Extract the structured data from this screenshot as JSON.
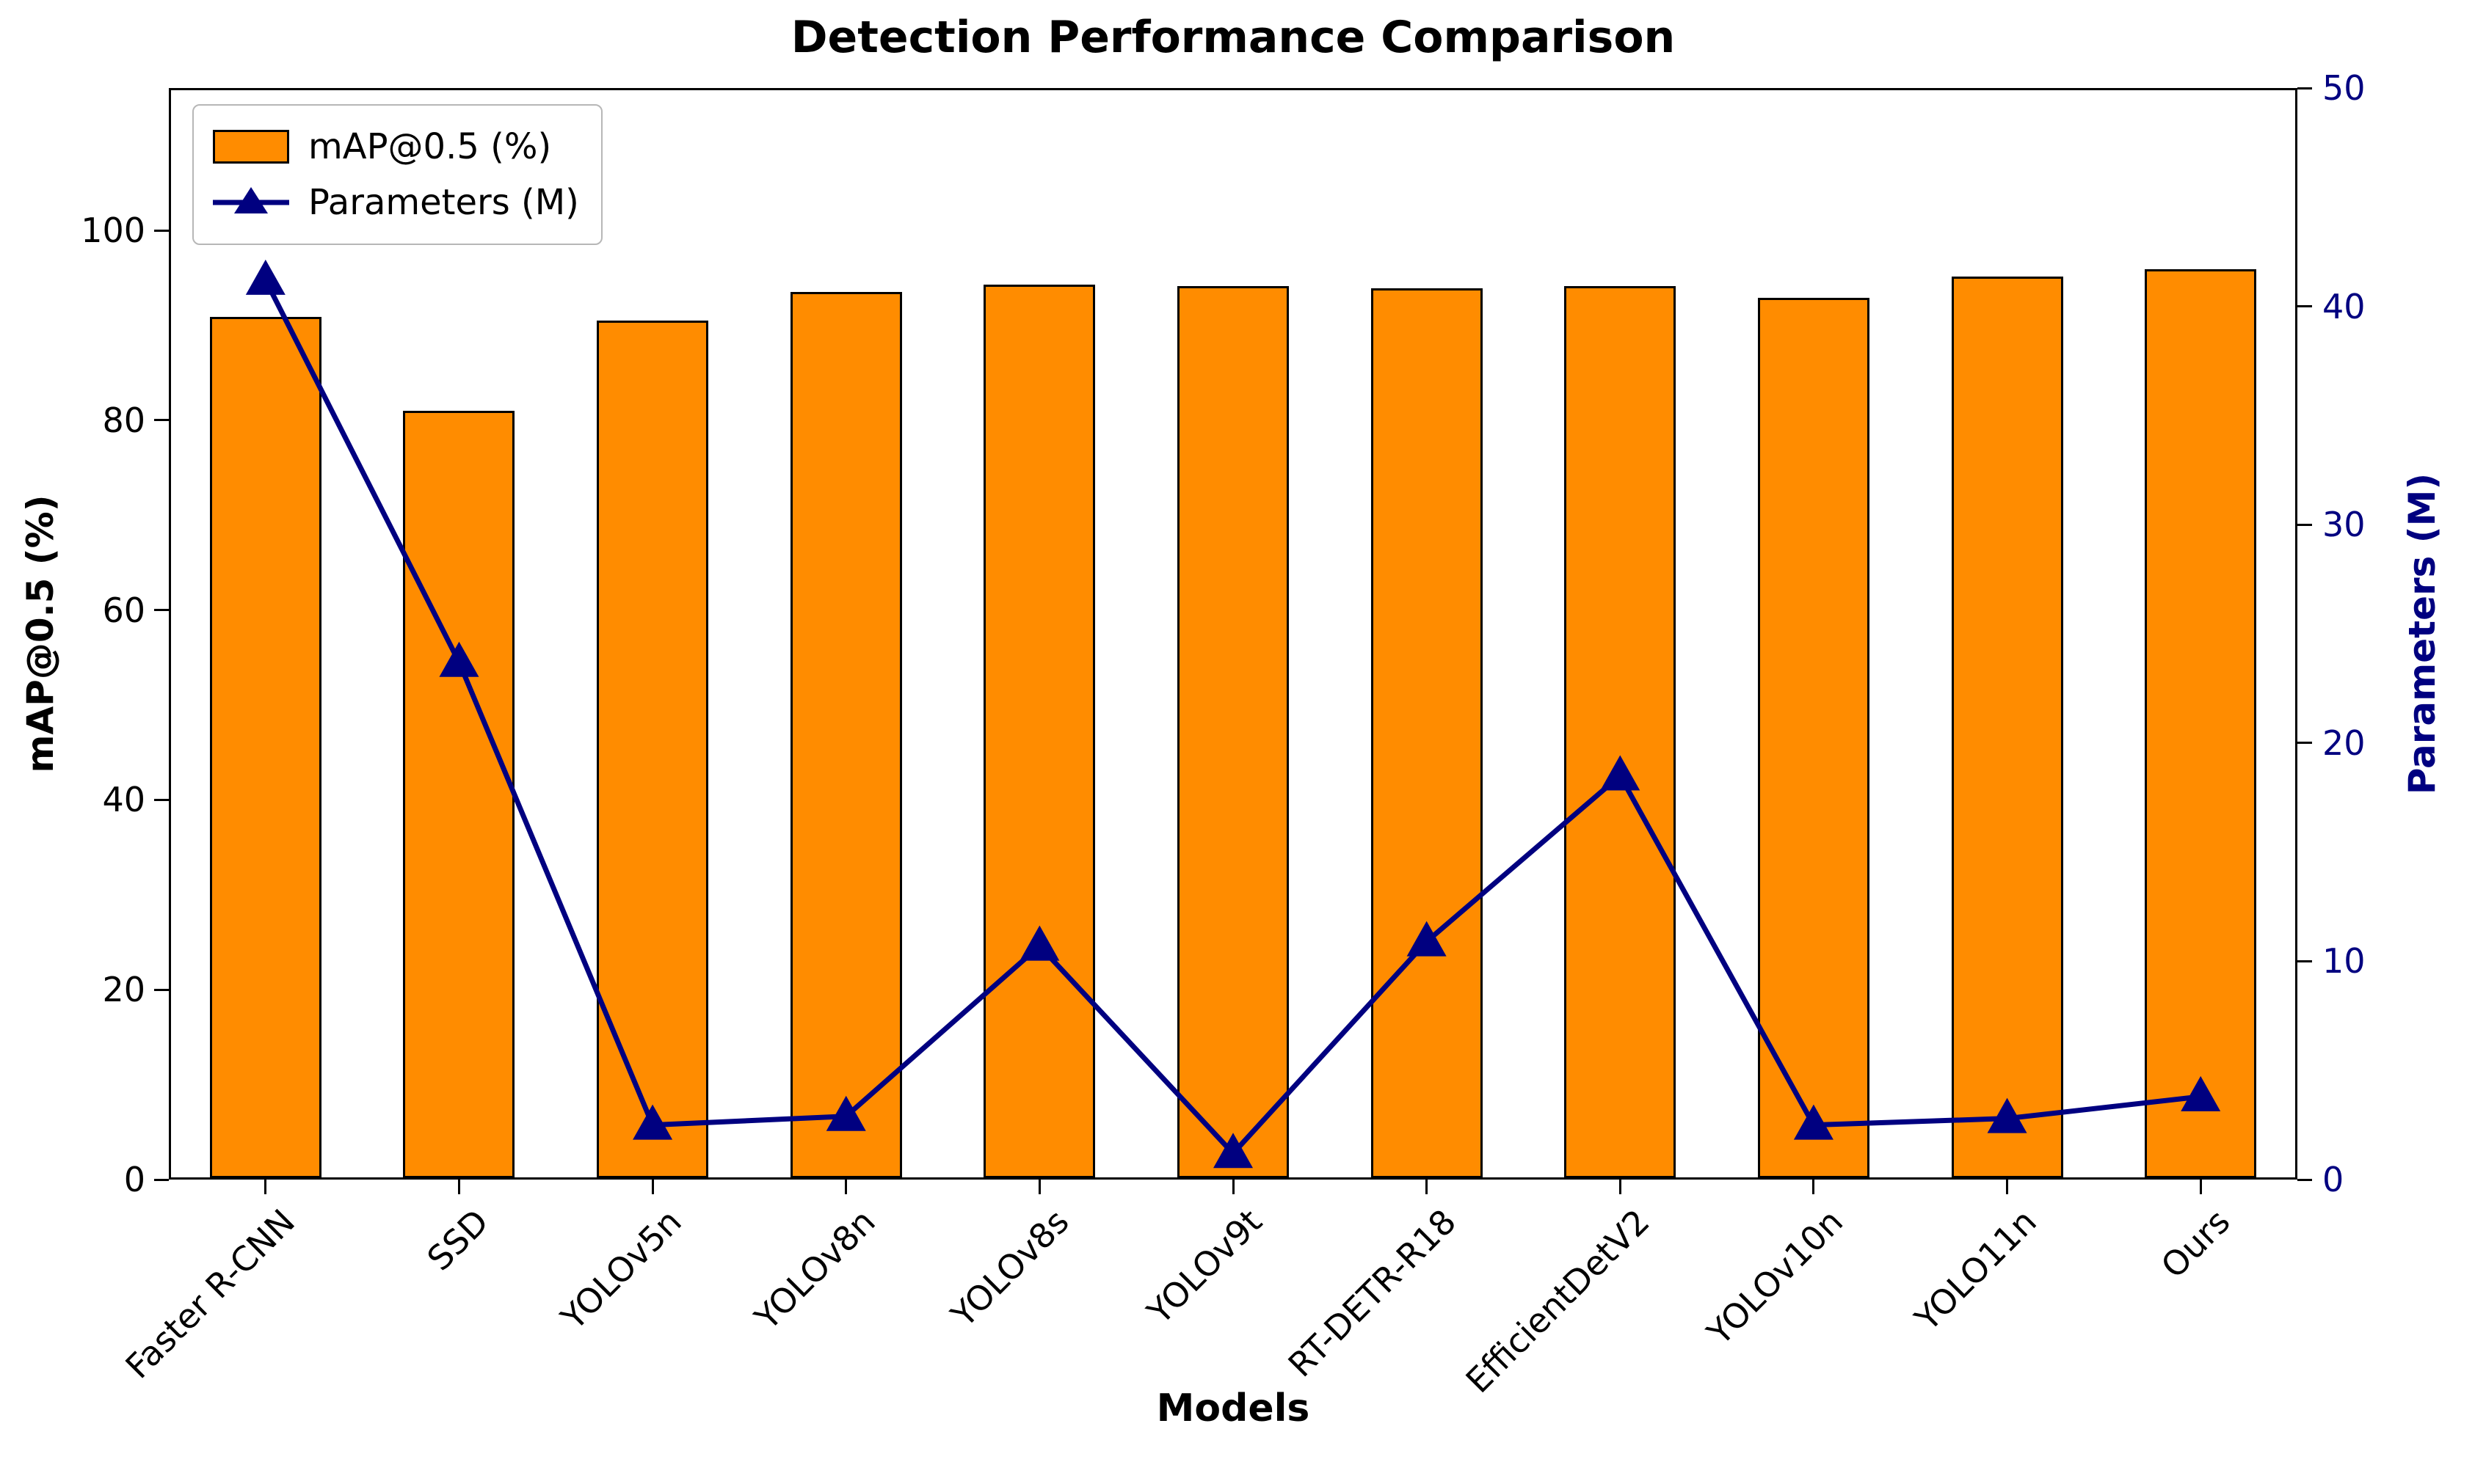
{
  "chart_data": {
    "type": "bar",
    "subtype": "dual-axis bar + line combo",
    "title": "Detection Performance Comparison",
    "xlabel": "Models",
    "ylabel_left": "mAP@0.5 (%)",
    "ylabel_right": "Parameters (M)",
    "categories": [
      "Faster R-CNN",
      "SSD",
      "YOLOv5n",
      "YOLOv8n",
      "YOLOv8s",
      "YOLOv9t",
      "RT-DETR-R18",
      "EfficientDetV2",
      "YOLOv10n",
      "YOLO11n",
      "Ours"
    ],
    "series": [
      {
        "name": "mAP@0.5 (%)",
        "type": "bar",
        "axis": "left",
        "color": "#ff8c00",
        "edge_color": "#000000",
        "values": [
          90.9,
          81.0,
          90.5,
          93.5,
          94.3,
          94.1,
          93.9,
          94.1,
          92.9,
          95.1,
          95.9
        ]
      },
      {
        "name": "Parameters (M)",
        "type": "line",
        "axis": "right",
        "color": "#000080",
        "marker": "triangle-up",
        "values": [
          41.2,
          23.7,
          2.5,
          2.9,
          10.7,
          1.2,
          10.9,
          18.5,
          2.5,
          2.8,
          3.8
        ]
      }
    ],
    "axes": {
      "left": {
        "ticks": [
          0,
          20,
          40,
          60,
          80,
          100
        ],
        "range": [
          0,
          115
        ],
        "color": "#000000"
      },
      "right": {
        "ticks": [
          0,
          10,
          20,
          30,
          40,
          50
        ],
        "range": [
          0,
          50
        ],
        "color": "#000080"
      }
    },
    "legend": {
      "position": "upper left",
      "entries": [
        "mAP@0.5 (%)",
        "Parameters (M)"
      ]
    },
    "grid": false,
    "xtick_rotation_deg": 45
  }
}
